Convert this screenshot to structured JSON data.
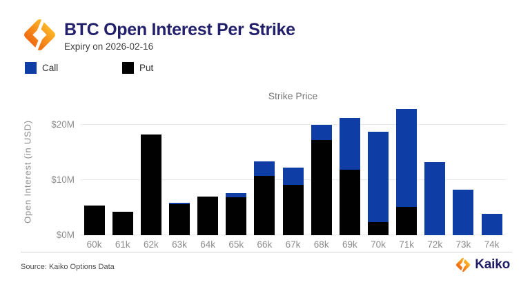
{
  "header": {
    "title": "BTC Open Interest Per Strike",
    "subtitle": "Expiry on 2026-02-16"
  },
  "legend": [
    {
      "label": "Call",
      "color": "#0d3da5"
    },
    {
      "label": "Put",
      "color": "#010101"
    }
  ],
  "chart_data": {
    "type": "bar",
    "stacked": true,
    "stack_order": "call-on-top",
    "xlabel": "Strike Price",
    "ylabel": "Open Interest (in USD)",
    "unit": "millions USD",
    "categories": [
      "60k",
      "61k",
      "62k",
      "63k",
      "64k",
      "65k",
      "66k",
      "67k",
      "68k",
      "69k",
      "70k",
      "71k",
      "72k",
      "73k",
      "74k"
    ],
    "series": [
      {
        "name": "Call",
        "color": "#0d3da5",
        "values": [
          0,
          0,
          0,
          0.25,
          0,
          0.7,
          2.6,
          3.1,
          2.7,
          9.3,
          16.3,
          17.8,
          13.3,
          8.3,
          3.9
        ]
      },
      {
        "name": "Put",
        "color": "#010101",
        "values": [
          5.4,
          4.2,
          18.3,
          5.6,
          7.0,
          6.9,
          10.8,
          9.1,
          17.3,
          11.9,
          2.4,
          5.1,
          0,
          0,
          0
        ]
      }
    ],
    "ylim": [
      0,
      23
    ],
    "yticks": [
      {
        "label": "$20M",
        "value": 20
      },
      {
        "label": "$10M",
        "value": 10
      },
      {
        "label": "$0M",
        "value": 0
      }
    ],
    "grid": "horizontal",
    "legend_position": "top-left"
  },
  "footer": {
    "source": "Source: Kaiko Options Data",
    "brand": "Kaiko"
  },
  "colors": {
    "call": "#0d3da5",
    "put": "#010101",
    "title_navy": "#23206b",
    "brand_navy": "#201c63",
    "axis_text": "#8c8c8c",
    "grid": "#e9e9e9",
    "divider": "#d2d2d2",
    "logo_gradient": [
      "#ee5a0a",
      "#f7941d",
      "#ffc62b"
    ]
  }
}
